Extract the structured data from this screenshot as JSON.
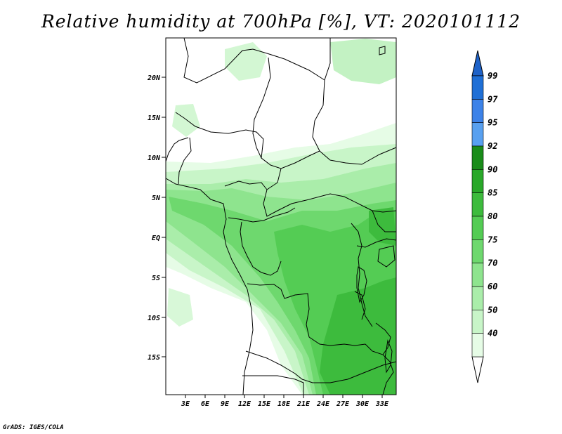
{
  "title": "Relative humidity at 700hPa [%], VT: 2020101112",
  "credit": "GrADS: IGES/COLA",
  "map": {
    "lat_labels": [
      "20N",
      "15N",
      "10N",
      "5N",
      "EQ",
      "5S",
      "10S",
      "15S"
    ],
    "lon_labels": [
      "3E",
      "6E",
      "9E",
      "12E",
      "15E",
      "18E",
      "21E",
      "24E",
      "27E",
      "30E",
      "33E"
    ],
    "variable": "Relative humidity",
    "units": "%",
    "level": "700hPa",
    "valid_time": "2020101112"
  },
  "colorbar": {
    "levels": [
      "99",
      "97",
      "95",
      "92",
      "90",
      "85",
      "80",
      "75",
      "70",
      "60",
      "50",
      "40"
    ],
    "colors": [
      "#1f6fd6",
      "#3c82e8",
      "#58a0f0",
      "#1a8c1a",
      "#29a829",
      "#3dbb3d",
      "#54cc54",
      "#6ed86e",
      "#8ee48e",
      "#aaedaa",
      "#c8f5c8",
      "#e6fce6"
    ],
    "top_arrow_color": "#1e62c8",
    "bottom_arrow_color": "#ffffff"
  }
}
